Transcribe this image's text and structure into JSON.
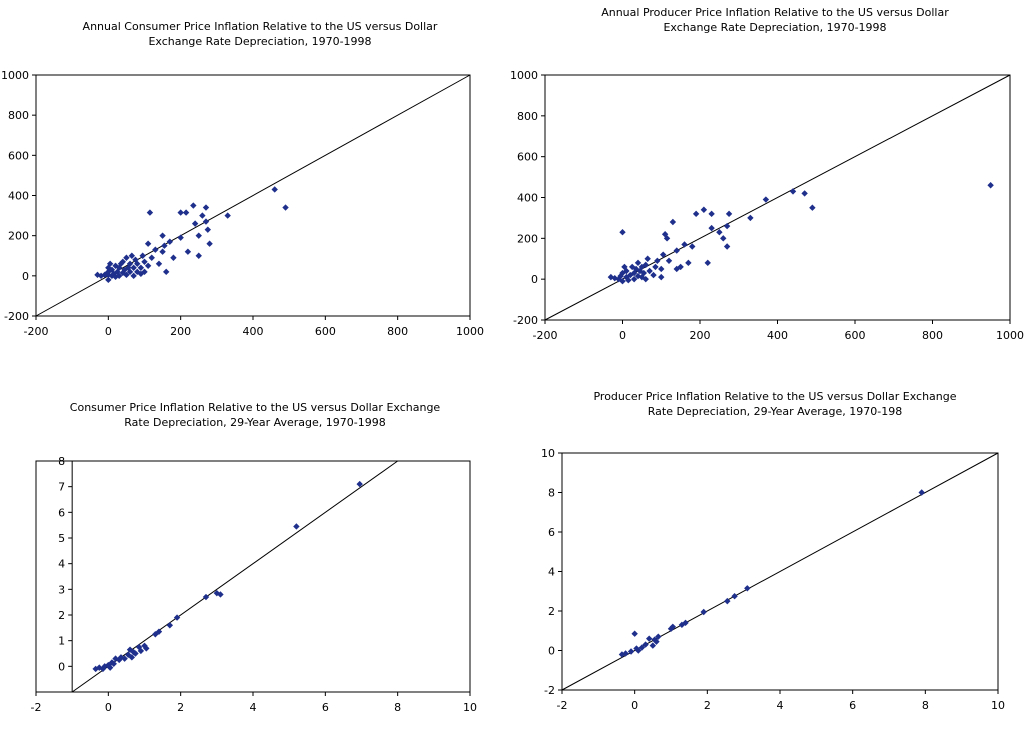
{
  "chart_data": [
    {
      "type": "scatter",
      "title": [
        "Annual Consumer Price Inflation Relative to the US versus Dollar",
        "Exchange Rate Depreciation, 1970-1998"
      ],
      "xlim": [
        -200,
        1000
      ],
      "ylim": [
        -200,
        1000
      ],
      "xticks": [
        -200,
        0,
        200,
        400,
        600,
        800,
        1000
      ],
      "yticks": [
        -200,
        0,
        200,
        400,
        600,
        800,
        1000
      ],
      "xtick_labels": [
        "-200",
        "0",
        "200",
        "400",
        "600",
        "800",
        "1000"
      ],
      "ytick_labels": [
        "-200",
        "0",
        "200",
        "400",
        "600",
        "800",
        "1000"
      ],
      "reference_line": "y = x",
      "marker_color": "#1f2f8c",
      "points": [
        [
          -30,
          5
        ],
        [
          -20,
          0
        ],
        [
          -10,
          5
        ],
        [
          -5,
          10
        ],
        [
          0,
          -20
        ],
        [
          0,
          5
        ],
        [
          0,
          20
        ],
        [
          0,
          40
        ],
        [
          5,
          60
        ],
        [
          10,
          0
        ],
        [
          10,
          30
        ],
        [
          15,
          10
        ],
        [
          20,
          50
        ],
        [
          20,
          -5
        ],
        [
          25,
          20
        ],
        [
          30,
          40
        ],
        [
          30,
          0
        ],
        [
          35,
          60
        ],
        [
          40,
          15
        ],
        [
          40,
          70
        ],
        [
          45,
          30
        ],
        [
          50,
          5
        ],
        [
          50,
          90
        ],
        [
          55,
          40
        ],
        [
          60,
          20
        ],
        [
          60,
          60
        ],
        [
          65,
          100
        ],
        [
          70,
          0
        ],
        [
          70,
          40
        ],
        [
          75,
          80
        ],
        [
          80,
          20
        ],
        [
          80,
          60
        ],
        [
          90,
          40
        ],
        [
          90,
          10
        ],
        [
          95,
          100
        ],
        [
          100,
          70
        ],
        [
          100,
          20
        ],
        [
          110,
          50
        ],
        [
          110,
          160
        ],
        [
          120,
          90
        ],
        [
          115,
          315
        ],
        [
          130,
          130
        ],
        [
          140,
          60
        ],
        [
          150,
          200
        ],
        [
          150,
          120
        ],
        [
          155,
          150
        ],
        [
          160,
          20
        ],
        [
          170,
          170
        ],
        [
          180,
          90
        ],
        [
          200,
          190
        ],
        [
          200,
          315
        ],
        [
          215,
          315
        ],
        [
          220,
          120
        ],
        [
          235,
          350
        ],
        [
          240,
          260
        ],
        [
          250,
          100
        ],
        [
          250,
          200
        ],
        [
          260,
          300
        ],
        [
          270,
          340
        ],
        [
          270,
          270
        ],
        [
          275,
          230
        ],
        [
          280,
          160
        ],
        [
          330,
          300
        ],
        [
          460,
          430
        ],
        [
          490,
          340
        ]
      ]
    },
    {
      "type": "scatter",
      "title": [
        "Annual Producer Price Inflation Relative to the US versus Dollar",
        "Exchange Rate Depreciation, 1970-1998"
      ],
      "xlim": [
        -200,
        1000
      ],
      "ylim": [
        -200,
        1000
      ],
      "xticks": [
        -200,
        0,
        200,
        400,
        600,
        800,
        1000
      ],
      "yticks": [
        -200,
        0,
        200,
        400,
        600,
        800,
        1000
      ],
      "xtick_labels": [
        "-200",
        "0",
        "200",
        "400",
        "600",
        "800",
        "1000"
      ],
      "ytick_labels": [
        "-200",
        "0",
        "200",
        "400",
        "600",
        "800",
        "1000"
      ],
      "reference_line": "y = x",
      "marker_color": "#1f2f8c",
      "points": [
        [
          -30,
          10
        ],
        [
          -20,
          5
        ],
        [
          -10,
          0
        ],
        [
          -5,
          15
        ],
        [
          0,
          230
        ],
        [
          0,
          -10
        ],
        [
          0,
          30
        ],
        [
          5,
          60
        ],
        [
          10,
          10
        ],
        [
          10,
          40
        ],
        [
          15,
          -5
        ],
        [
          20,
          20
        ],
        [
          25,
          60
        ],
        [
          30,
          0
        ],
        [
          30,
          30
        ],
        [
          35,
          50
        ],
        [
          40,
          80
        ],
        [
          40,
          15
        ],
        [
          45,
          40
        ],
        [
          50,
          10
        ],
        [
          50,
          60
        ],
        [
          55,
          30
        ],
        [
          60,
          70
        ],
        [
          60,
          0
        ],
        [
          65,
          100
        ],
        [
          70,
          40
        ],
        [
          80,
          20
        ],
        [
          85,
          60
        ],
        [
          90,
          90
        ],
        [
          100,
          50
        ],
        [
          100,
          10
        ],
        [
          105,
          120
        ],
        [
          110,
          220
        ],
        [
          115,
          200
        ],
        [
          120,
          90
        ],
        [
          130,
          280
        ],
        [
          140,
          140
        ],
        [
          140,
          50
        ],
        [
          150,
          60
        ],
        [
          160,
          170
        ],
        [
          170,
          80
        ],
        [
          180,
          160
        ],
        [
          190,
          320
        ],
        [
          210,
          340
        ],
        [
          220,
          80
        ],
        [
          230,
          250
        ],
        [
          230,
          320
        ],
        [
          250,
          230
        ],
        [
          260,
          200
        ],
        [
          270,
          260
        ],
        [
          270,
          160
        ],
        [
          275,
          320
        ],
        [
          330,
          300
        ],
        [
          370,
          390
        ],
        [
          440,
          430
        ],
        [
          470,
          420
        ],
        [
          490,
          350
        ],
        [
          950,
          460
        ]
      ]
    },
    {
      "type": "scatter",
      "title": [
        "Consumer Price Inflation Relative to the US versus Dollar Exchange",
        "Rate Depreciation, 29-Year Average, 1970-1998"
      ],
      "xlim": [
        -2,
        10
      ],
      "ylim": [
        -1,
        8
      ],
      "xticks": [
        -2,
        0,
        2,
        4,
        6,
        8,
        10
      ],
      "yticks": [
        0,
        1,
        2,
        3,
        4,
        5,
        6,
        7,
        8
      ],
      "xtick_labels": [
        "-2",
        "0",
        "2",
        "4",
        "6",
        "8",
        "10"
      ],
      "ytick_labels": [
        "0",
        "1",
        "2",
        "3",
        "4",
        "5",
        "6",
        "7",
        "8"
      ],
      "y_axis_at_x": -1,
      "reference_line": "y = x",
      "marker_color": "#1f2f8c",
      "points": [
        [
          -0.35,
          -0.1
        ],
        [
          -0.25,
          -0.05
        ],
        [
          -0.15,
          -0.1
        ],
        [
          -0.1,
          0
        ],
        [
          0,
          0.05
        ],
        [
          0.05,
          -0.05
        ],
        [
          0.1,
          0.15
        ],
        [
          0.15,
          0.1
        ],
        [
          0.2,
          0.3
        ],
        [
          0.3,
          0.25
        ],
        [
          0.35,
          0.35
        ],
        [
          0.45,
          0.3
        ],
        [
          0.55,
          0.45
        ],
        [
          0.6,
          0.65
        ],
        [
          0.65,
          0.35
        ],
        [
          0.7,
          0.55
        ],
        [
          0.75,
          0.5
        ],
        [
          0.85,
          0.75
        ],
        [
          0.9,
          0.6
        ],
        [
          1.0,
          0.8
        ],
        [
          1.05,
          0.7
        ],
        [
          1.3,
          1.25
        ],
        [
          1.4,
          1.35
        ],
        [
          1.7,
          1.6
        ],
        [
          1.9,
          1.9
        ],
        [
          2.7,
          2.7
        ],
        [
          3.0,
          2.85
        ],
        [
          3.1,
          2.8
        ],
        [
          5.2,
          5.45
        ],
        [
          6.95,
          7.1
        ]
      ]
    },
    {
      "type": "scatter",
      "title": [
        "Producer Price Inflation Relative to the US versus Dollar Exchange",
        "Rate Depreciation, 29-Year Average, 1970-198"
      ],
      "xlim": [
        -2,
        10
      ],
      "ylim": [
        -2,
        10
      ],
      "xticks": [
        -2,
        0,
        2,
        4,
        6,
        8,
        10
      ],
      "yticks": [
        -2,
        0,
        2,
        4,
        6,
        8,
        10
      ],
      "xtick_labels": [
        "-2",
        "0",
        "2",
        "4",
        "6",
        "8",
        "10"
      ],
      "ytick_labels": [
        "-2",
        "0",
        "2",
        "4",
        "6",
        "8",
        "10"
      ],
      "reference_line": "y = x",
      "marker_color": "#1f2f8c",
      "points": [
        [
          -0.35,
          -0.2
        ],
        [
          -0.25,
          -0.15
        ],
        [
          -0.1,
          -0.05
        ],
        [
          0,
          0.85
        ],
        [
          0.05,
          0.1
        ],
        [
          0.1,
          0.0
        ],
        [
          0.2,
          0.15
        ],
        [
          0.3,
          0.3
        ],
        [
          0.4,
          0.6
        ],
        [
          0.5,
          0.25
        ],
        [
          0.55,
          0.55
        ],
        [
          0.6,
          0.45
        ],
        [
          0.65,
          0.7
        ],
        [
          1.0,
          1.1
        ],
        [
          1.05,
          1.2
        ],
        [
          1.3,
          1.3
        ],
        [
          1.4,
          1.4
        ],
        [
          1.9,
          1.95
        ],
        [
          2.55,
          2.5
        ],
        [
          2.75,
          2.75
        ],
        [
          3.1,
          3.15
        ],
        [
          7.9,
          8.0
        ]
      ]
    }
  ]
}
